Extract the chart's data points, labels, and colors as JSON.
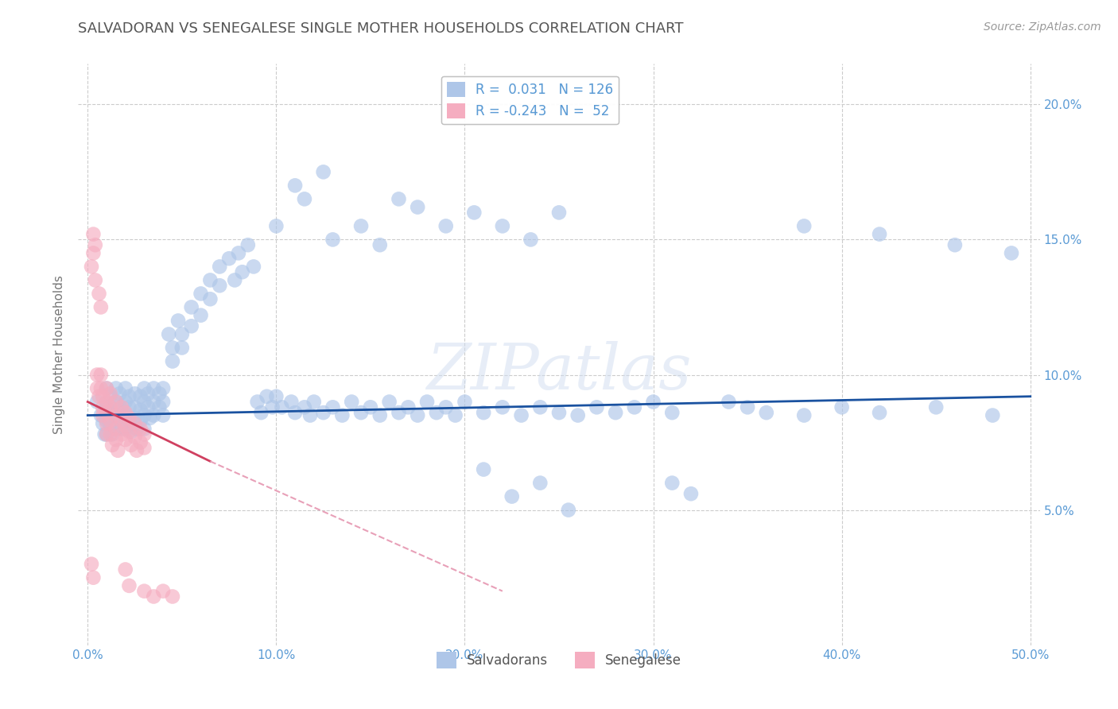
{
  "title": "SALVADORAN VS SENEGALESE SINGLE MOTHER HOUSEHOLDS CORRELATION CHART",
  "source": "Source: ZipAtlas.com",
  "ylabel": "Single Mother Households",
  "xlabel": "",
  "watermark": "ZIPatlas",
  "xlim": [
    -0.005,
    0.505
  ],
  "ylim": [
    0.0,
    0.215
  ],
  "xticks": [
    0.0,
    0.1,
    0.2,
    0.3,
    0.4,
    0.5
  ],
  "yticks": [
    0.05,
    0.1,
    0.15,
    0.2
  ],
  "xtick_labels": [
    "0.0%",
    "10.0%",
    "20.0%",
    "30.0%",
    "40.0%",
    "50.0%"
  ],
  "ytick_labels": [
    "5.0%",
    "10.0%",
    "15.0%",
    "20.0%"
  ],
  "R_blue": 0.031,
  "N_blue": 126,
  "R_pink": -0.243,
  "N_pink": 52,
  "blue_color": "#aec6e8",
  "pink_color": "#f5adc0",
  "blue_line_color": "#1a52a0",
  "pink_line_color": "#d04060",
  "pink_dash_color": "#e8a0b8",
  "title_color": "#555555",
  "source_color": "#999999",
  "grid_color": "#cccccc",
  "label_color": "#5b9bd5",
  "background_color": "#ffffff",
  "blue_scatter": [
    [
      0.005,
      0.09
    ],
    [
      0.007,
      0.085
    ],
    [
      0.008,
      0.082
    ],
    [
      0.009,
      0.078
    ],
    [
      0.01,
      0.095
    ],
    [
      0.01,
      0.088
    ],
    [
      0.01,
      0.083
    ],
    [
      0.01,
      0.078
    ],
    [
      0.012,
      0.092
    ],
    [
      0.012,
      0.087
    ],
    [
      0.012,
      0.082
    ],
    [
      0.013,
      0.078
    ],
    [
      0.015,
      0.095
    ],
    [
      0.015,
      0.09
    ],
    [
      0.015,
      0.085
    ],
    [
      0.015,
      0.08
    ],
    [
      0.017,
      0.093
    ],
    [
      0.017,
      0.088
    ],
    [
      0.018,
      0.085
    ],
    [
      0.018,
      0.08
    ],
    [
      0.02,
      0.095
    ],
    [
      0.02,
      0.09
    ],
    [
      0.02,
      0.085
    ],
    [
      0.02,
      0.08
    ],
    [
      0.022,
      0.092
    ],
    [
      0.022,
      0.088
    ],
    [
      0.022,
      0.083
    ],
    [
      0.023,
      0.079
    ],
    [
      0.025,
      0.093
    ],
    [
      0.025,
      0.088
    ],
    [
      0.025,
      0.084
    ],
    [
      0.026,
      0.08
    ],
    [
      0.028,
      0.092
    ],
    [
      0.028,
      0.087
    ],
    [
      0.028,
      0.083
    ],
    [
      0.03,
      0.095
    ],
    [
      0.03,
      0.09
    ],
    [
      0.03,
      0.085
    ],
    [
      0.03,
      0.08
    ],
    [
      0.032,
      0.093
    ],
    [
      0.032,
      0.088
    ],
    [
      0.033,
      0.084
    ],
    [
      0.035,
      0.095
    ],
    [
      0.035,
      0.09
    ],
    [
      0.035,
      0.085
    ],
    [
      0.038,
      0.093
    ],
    [
      0.038,
      0.088
    ],
    [
      0.04,
      0.095
    ],
    [
      0.04,
      0.09
    ],
    [
      0.04,
      0.085
    ],
    [
      0.043,
      0.115
    ],
    [
      0.045,
      0.11
    ],
    [
      0.045,
      0.105
    ],
    [
      0.048,
      0.12
    ],
    [
      0.05,
      0.115
    ],
    [
      0.05,
      0.11
    ],
    [
      0.055,
      0.125
    ],
    [
      0.055,
      0.118
    ],
    [
      0.06,
      0.13
    ],
    [
      0.06,
      0.122
    ],
    [
      0.065,
      0.135
    ],
    [
      0.065,
      0.128
    ],
    [
      0.07,
      0.14
    ],
    [
      0.07,
      0.133
    ],
    [
      0.075,
      0.143
    ],
    [
      0.078,
      0.135
    ],
    [
      0.08,
      0.145
    ],
    [
      0.082,
      0.138
    ],
    [
      0.085,
      0.148
    ],
    [
      0.088,
      0.14
    ],
    [
      0.09,
      0.09
    ],
    [
      0.092,
      0.086
    ],
    [
      0.095,
      0.092
    ],
    [
      0.098,
      0.088
    ],
    [
      0.1,
      0.092
    ],
    [
      0.103,
      0.088
    ],
    [
      0.108,
      0.09
    ],
    [
      0.11,
      0.086
    ],
    [
      0.115,
      0.088
    ],
    [
      0.118,
      0.085
    ],
    [
      0.12,
      0.09
    ],
    [
      0.125,
      0.086
    ],
    [
      0.13,
      0.088
    ],
    [
      0.135,
      0.085
    ],
    [
      0.14,
      0.09
    ],
    [
      0.145,
      0.086
    ],
    [
      0.15,
      0.088
    ],
    [
      0.155,
      0.085
    ],
    [
      0.16,
      0.09
    ],
    [
      0.165,
      0.086
    ],
    [
      0.17,
      0.088
    ],
    [
      0.175,
      0.085
    ],
    [
      0.18,
      0.09
    ],
    [
      0.185,
      0.086
    ],
    [
      0.19,
      0.088
    ],
    [
      0.195,
      0.085
    ],
    [
      0.2,
      0.09
    ],
    [
      0.21,
      0.086
    ],
    [
      0.22,
      0.088
    ],
    [
      0.23,
      0.085
    ],
    [
      0.24,
      0.088
    ],
    [
      0.25,
      0.086
    ],
    [
      0.26,
      0.085
    ],
    [
      0.27,
      0.088
    ],
    [
      0.28,
      0.086
    ],
    [
      0.29,
      0.088
    ],
    [
      0.1,
      0.155
    ],
    [
      0.115,
      0.165
    ],
    [
      0.13,
      0.15
    ],
    [
      0.145,
      0.155
    ],
    [
      0.155,
      0.148
    ],
    [
      0.165,
      0.165
    ],
    [
      0.175,
      0.162
    ],
    [
      0.19,
      0.155
    ],
    [
      0.205,
      0.16
    ],
    [
      0.22,
      0.155
    ],
    [
      0.235,
      0.15
    ],
    [
      0.25,
      0.16
    ],
    [
      0.11,
      0.17
    ],
    [
      0.125,
      0.175
    ],
    [
      0.21,
      0.065
    ],
    [
      0.225,
      0.055
    ],
    [
      0.24,
      0.06
    ],
    [
      0.255,
      0.05
    ],
    [
      0.31,
      0.06
    ],
    [
      0.32,
      0.056
    ],
    [
      0.34,
      0.09
    ],
    [
      0.36,
      0.086
    ],
    [
      0.3,
      0.09
    ],
    [
      0.31,
      0.086
    ],
    [
      0.35,
      0.088
    ],
    [
      0.38,
      0.085
    ],
    [
      0.4,
      0.088
    ],
    [
      0.42,
      0.086
    ],
    [
      0.45,
      0.088
    ],
    [
      0.48,
      0.085
    ],
    [
      0.38,
      0.155
    ],
    [
      0.42,
      0.152
    ],
    [
      0.46,
      0.148
    ],
    [
      0.49,
      0.145
    ]
  ],
  "pink_scatter": [
    [
      0.002,
      0.14
    ],
    [
      0.003,
      0.145
    ],
    [
      0.004,
      0.135
    ],
    [
      0.005,
      0.1
    ],
    [
      0.005,
      0.095
    ],
    [
      0.006,
      0.092
    ],
    [
      0.007,
      0.1
    ],
    [
      0.007,
      0.095
    ],
    [
      0.008,
      0.092
    ],
    [
      0.008,
      0.088
    ],
    [
      0.008,
      0.085
    ],
    [
      0.01,
      0.095
    ],
    [
      0.01,
      0.09
    ],
    [
      0.01,
      0.086
    ],
    [
      0.01,
      0.082
    ],
    [
      0.01,
      0.078
    ],
    [
      0.012,
      0.093
    ],
    [
      0.012,
      0.088
    ],
    [
      0.012,
      0.083
    ],
    [
      0.012,
      0.078
    ],
    [
      0.013,
      0.074
    ],
    [
      0.015,
      0.09
    ],
    [
      0.015,
      0.085
    ],
    [
      0.015,
      0.08
    ],
    [
      0.015,
      0.076
    ],
    [
      0.016,
      0.072
    ],
    [
      0.018,
      0.088
    ],
    [
      0.018,
      0.083
    ],
    [
      0.018,
      0.078
    ],
    [
      0.02,
      0.086
    ],
    [
      0.02,
      0.081
    ],
    [
      0.02,
      0.076
    ],
    [
      0.022,
      0.084
    ],
    [
      0.022,
      0.079
    ],
    [
      0.023,
      0.074
    ],
    [
      0.025,
      0.082
    ],
    [
      0.025,
      0.077
    ],
    [
      0.026,
      0.072
    ],
    [
      0.028,
      0.08
    ],
    [
      0.028,
      0.075
    ],
    [
      0.03,
      0.078
    ],
    [
      0.03,
      0.073
    ],
    [
      0.003,
      0.152
    ],
    [
      0.004,
      0.148
    ],
    [
      0.006,
      0.13
    ],
    [
      0.007,
      0.125
    ],
    [
      0.002,
      0.03
    ],
    [
      0.003,
      0.025
    ],
    [
      0.02,
      0.028
    ],
    [
      0.022,
      0.022
    ],
    [
      0.03,
      0.02
    ],
    [
      0.035,
      0.018
    ],
    [
      0.04,
      0.02
    ],
    [
      0.045,
      0.018
    ]
  ],
  "blue_line": [
    [
      0.0,
      0.085
    ],
    [
      0.5,
      0.092
    ]
  ],
  "pink_line_solid": [
    [
      0.0,
      0.09
    ],
    [
      0.065,
      0.068
    ]
  ],
  "pink_line_dash": [
    [
      0.065,
      0.068
    ],
    [
      0.22,
      0.02
    ]
  ]
}
